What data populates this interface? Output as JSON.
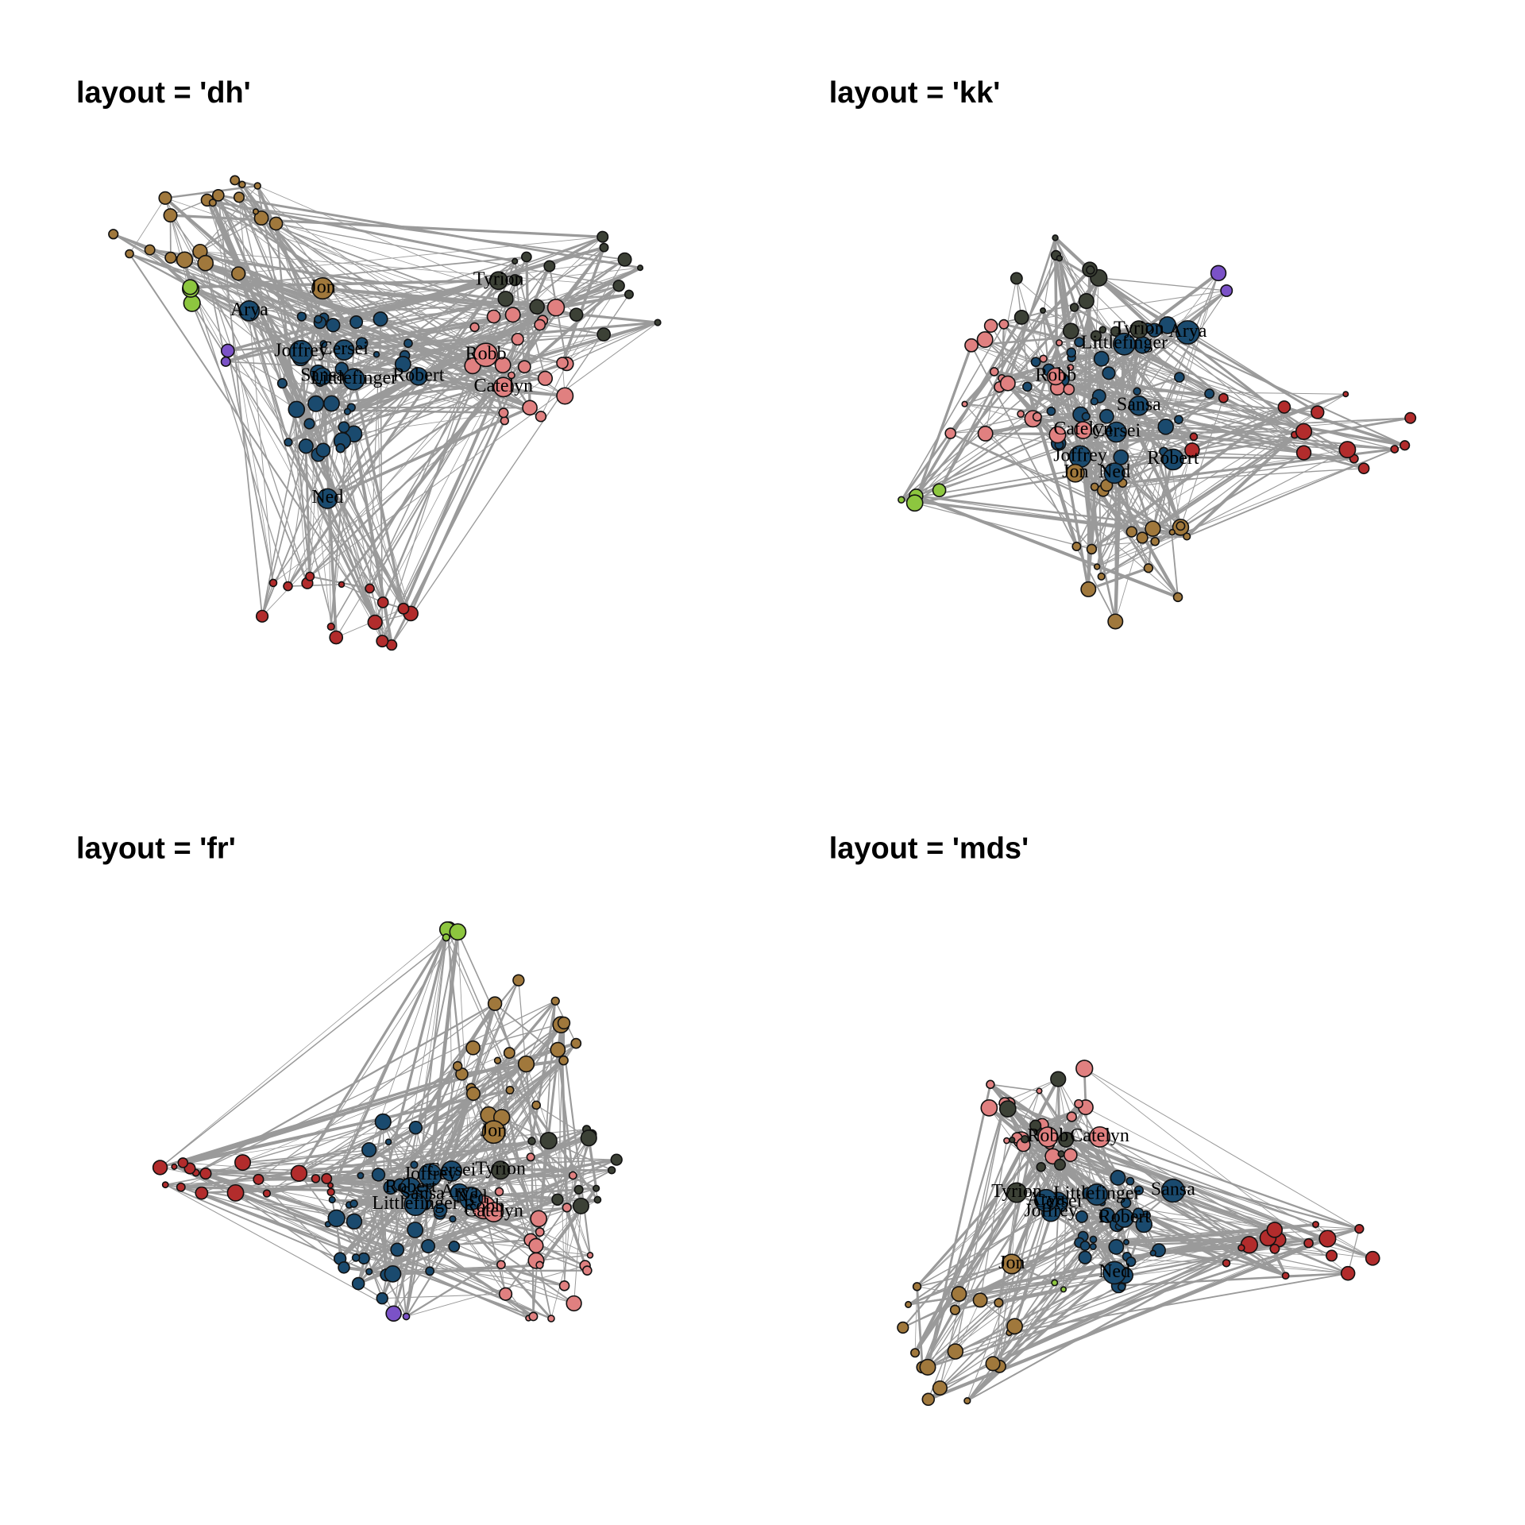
{
  "panels": [
    {
      "title": "layout = 'dh'",
      "labels": [
        "Jon",
        "Arya",
        "Joffrey",
        "Cersei",
        "Sansa",
        "Littlefinger",
        "Robert",
        "Tyrion",
        "Robb",
        "Catelyn",
        "Ned"
      ]
    },
    {
      "title": "layout = 'kk'",
      "labels": [
        "Tyrion",
        "Arya",
        "Littlefinger",
        "Robb",
        "Sansa",
        "Catelyn",
        "Cersei",
        "Joffrey",
        "Robert",
        "Jon",
        "Ned"
      ]
    },
    {
      "title": "layout = 'fr'",
      "labels": [
        "Jon",
        "Tyrion",
        "Cersei",
        "Joffrey",
        "Robert",
        "Sansa",
        "Littlefinger",
        "Arya",
        "Robb",
        "Catelyn",
        "Ned"
      ]
    },
    {
      "title": "layout = 'mds'",
      "labels": [
        "Robb",
        "Catelyn",
        "Tyrion",
        "Littlefinger",
        "Sansa",
        "Cersei",
        "Joffrey",
        "Robert",
        "Arya",
        "Jon",
        "Ned"
      ]
    }
  ]
}
